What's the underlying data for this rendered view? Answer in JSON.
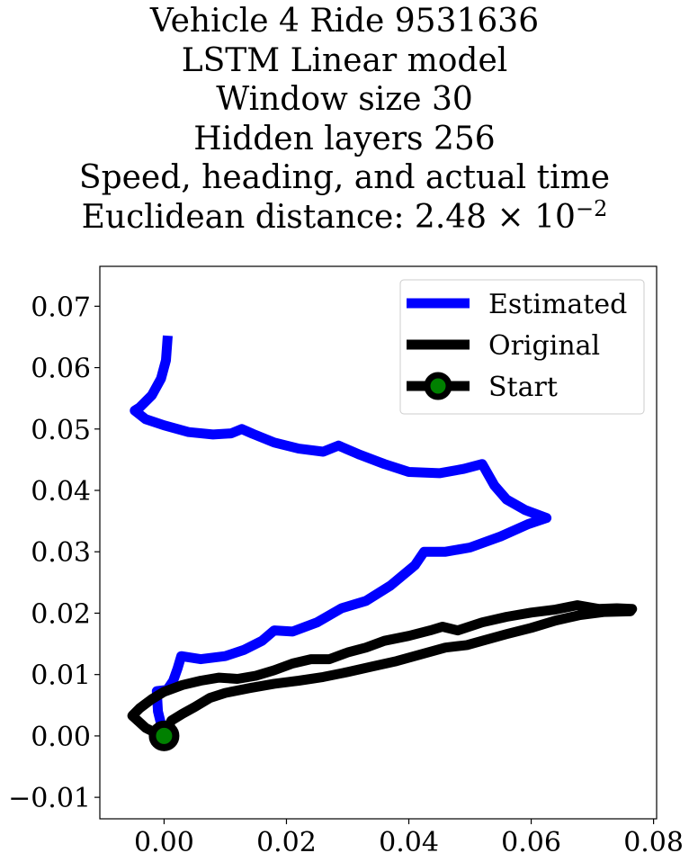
{
  "chart_data": {
    "type": "line",
    "title_lines": [
      "Vehicle 4 Ride 9531636",
      "LSTM Linear model",
      "Window size 30",
      "Hidden layers 256",
      "Speed, heading, and actual time"
    ],
    "title_distance_prefix": "Euclidean distance: 2.48 × 10",
    "title_distance_exponent": "−2",
    "xlim": [
      -0.0105,
      0.0805
    ],
    "ylim": [
      -0.0135,
      0.0765
    ],
    "xticks": [
      0.0,
      0.02,
      0.04,
      0.06,
      0.08
    ],
    "xtick_labels": [
      "0.00",
      "0.02",
      "0.04",
      "0.06",
      "0.08"
    ],
    "yticks": [
      -0.01,
      0.0,
      0.01,
      0.02,
      0.03,
      0.04,
      0.05,
      0.06,
      0.07
    ],
    "ytick_labels": [
      "−0.01",
      "0.00",
      "0.01",
      "0.02",
      "0.03",
      "0.04",
      "0.05",
      "0.06",
      "0.07"
    ],
    "grid": false,
    "legend_position": "top-right",
    "series": [
      {
        "name": "Estimated",
        "color": "#0000ff",
        "points": [
          [
            0.0,
            0.0
          ],
          [
            -0.0005,
            0.002
          ],
          [
            -0.001,
            0.004
          ],
          [
            -0.0012,
            0.0073
          ],
          [
            0.0005,
            0.0075
          ],
          [
            0.0015,
            0.009
          ],
          [
            0.0022,
            0.011
          ],
          [
            0.0028,
            0.013
          ],
          [
            0.006,
            0.0125
          ],
          [
            0.01,
            0.013
          ],
          [
            0.013,
            0.014
          ],
          [
            0.016,
            0.0155
          ],
          [
            0.018,
            0.0172
          ],
          [
            0.021,
            0.017
          ],
          [
            0.025,
            0.0185
          ],
          [
            0.029,
            0.0208
          ],
          [
            0.033,
            0.022
          ],
          [
            0.037,
            0.0245
          ],
          [
            0.041,
            0.0278
          ],
          [
            0.0425,
            0.03
          ],
          [
            0.046,
            0.03
          ],
          [
            0.05,
            0.0307
          ],
          [
            0.055,
            0.0325
          ],
          [
            0.0595,
            0.0345
          ],
          [
            0.0625,
            0.0355
          ],
          [
            0.059,
            0.0368
          ],
          [
            0.056,
            0.0385
          ],
          [
            0.054,
            0.0408
          ],
          [
            0.052,
            0.0443
          ],
          [
            0.049,
            0.0435
          ],
          [
            0.045,
            0.0428
          ],
          [
            0.04,
            0.043
          ],
          [
            0.036,
            0.0443
          ],
          [
            0.032,
            0.0458
          ],
          [
            0.0285,
            0.0473
          ],
          [
            0.026,
            0.0463
          ],
          [
            0.022,
            0.0468
          ],
          [
            0.018,
            0.0478
          ],
          [
            0.0145,
            0.0492
          ],
          [
            0.0127,
            0.05
          ],
          [
            0.011,
            0.0493
          ],
          [
            0.008,
            0.0491
          ],
          [
            0.004,
            0.0495
          ],
          [
            0.0,
            0.0506
          ],
          [
            -0.003,
            0.0516
          ],
          [
            -0.0048,
            0.053
          ],
          [
            -0.004,
            0.0535
          ],
          [
            -0.002,
            0.0555
          ],
          [
            -0.0005,
            0.0582
          ],
          [
            0.0003,
            0.0612
          ],
          [
            0.0006,
            0.0652
          ]
        ]
      },
      {
        "name": "Original",
        "color": "#000000",
        "points": [
          [
            0.0008,
            -0.0018
          ],
          [
            -0.001,
            0.0003
          ],
          [
            -0.003,
            0.0013
          ],
          [
            -0.0052,
            0.0033
          ],
          [
            -0.004,
            0.0045
          ],
          [
            -0.002,
            0.006
          ],
          [
            0.0,
            0.0072
          ],
          [
            0.003,
            0.0083
          ],
          [
            0.006,
            0.009
          ],
          [
            0.009,
            0.0095
          ],
          [
            0.012,
            0.0093
          ],
          [
            0.015,
            0.0098
          ],
          [
            0.018,
            0.0107
          ],
          [
            0.021,
            0.0118
          ],
          [
            0.024,
            0.0125
          ],
          [
            0.027,
            0.0125
          ],
          [
            0.03,
            0.0136
          ],
          [
            0.033,
            0.0144
          ],
          [
            0.036,
            0.0155
          ],
          [
            0.04,
            0.0163
          ],
          [
            0.0435,
            0.0172
          ],
          [
            0.0455,
            0.0178
          ],
          [
            0.048,
            0.0172
          ],
          [
            0.052,
            0.0185
          ],
          [
            0.056,
            0.0194
          ],
          [
            0.06,
            0.0201
          ],
          [
            0.064,
            0.0206
          ],
          [
            0.0675,
            0.0213
          ],
          [
            0.071,
            0.0207
          ],
          [
            0.074,
            0.0208
          ],
          [
            0.0765,
            0.0207
          ],
          [
            0.0762,
            0.0203
          ],
          [
            0.072,
            0.0202
          ],
          [
            0.068,
            0.0197
          ],
          [
            0.064,
            0.0188
          ],
          [
            0.06,
            0.0176
          ],
          [
            0.056,
            0.0166
          ],
          [
            0.052,
            0.0155
          ],
          [
            0.0495,
            0.0148
          ],
          [
            0.046,
            0.0144
          ],
          [
            0.042,
            0.0133
          ],
          [
            0.038,
            0.0122
          ],
          [
            0.034,
            0.0113
          ],
          [
            0.03,
            0.0104
          ],
          [
            0.026,
            0.0096
          ],
          [
            0.022,
            0.009
          ],
          [
            0.018,
            0.0085
          ],
          [
            0.014,
            0.0078
          ],
          [
            0.01,
            0.007
          ],
          [
            0.0075,
            0.0062
          ],
          [
            0.005,
            0.0047
          ],
          [
            0.003,
            0.0036
          ],
          [
            0.0012,
            0.0025
          ],
          [
            0.0,
            0.0
          ]
        ]
      }
    ],
    "start_marker": {
      "name": "Start",
      "x": 0.0,
      "y": 0.0,
      "color": "#008000",
      "edge_color": "#000000"
    }
  }
}
